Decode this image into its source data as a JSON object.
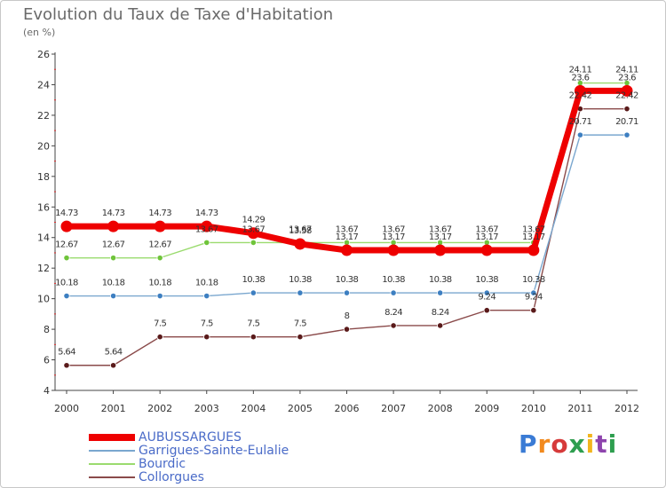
{
  "title": "Evolution du Taux de Taxe d'Habitation",
  "unit_label": "(en %)",
  "brand": "Proxiti",
  "chart_data": {
    "type": "line",
    "title": "Evolution du Taux de Taxe d'Habitation",
    "ylabel": "(en %)",
    "xlabel": "",
    "ylim": [
      4,
      26
    ],
    "yticks": [
      4,
      6,
      8,
      10,
      12,
      14,
      16,
      18,
      20,
      22,
      24,
      26
    ],
    "grid": false,
    "legend_position": "bottom-left",
    "categories": [
      "2000",
      "2001",
      "2002",
      "2003",
      "2004",
      "2005",
      "2006",
      "2007",
      "2008",
      "2009",
      "2010",
      "2011",
      "2012"
    ],
    "series": [
      {
        "name": "AUBUSSARGUES",
        "color": "#ee0000",
        "marker_color": "#ee0000",
        "values": [
          14.73,
          14.73,
          14.73,
          14.73,
          14.29,
          13.58,
          13.17,
          13.17,
          13.17,
          13.17,
          13.17,
          23.6,
          23.6
        ],
        "labels": [
          "14.73",
          "14.73",
          "14.73",
          "14.73",
          "14.29",
          "13.58",
          "13.17",
          "13.17",
          "13.17",
          "13.17",
          "13.17",
          "23.6",
          "23.6"
        ]
      },
      {
        "name": "Garrigues-Sainte-Eulalie",
        "color": "#7aa7cf",
        "marker_color": "#3d7fc1",
        "values": [
          10.18,
          10.18,
          10.18,
          10.18,
          10.38,
          10.38,
          10.38,
          10.38,
          10.38,
          10.38,
          10.38,
          20.71,
          20.71
        ],
        "labels": [
          "10.18",
          "10.18",
          "10.18",
          "10.18",
          "10.38",
          "10.38",
          "10.38",
          "10.38",
          "10.38",
          "10.38",
          "10.38",
          "20.71",
          "20.71"
        ]
      },
      {
        "name": "Bourdic",
        "color": "#9adb6e",
        "marker_color": "#6fc43a",
        "values": [
          12.67,
          12.67,
          12.67,
          13.67,
          13.67,
          13.67,
          13.67,
          13.67,
          13.67,
          13.67,
          13.67,
          24.11,
          24.11
        ],
        "labels": [
          "12.67",
          "12.67",
          "12.67",
          "13.67",
          "13.67",
          "13.67",
          "13.67",
          "13.67",
          "13.67",
          "13.67",
          "13.67",
          "24.11",
          "24.11"
        ]
      },
      {
        "name": "Collorgues",
        "color": "#8a4a4a",
        "marker_color": "#5a1a1a",
        "values": [
          5.64,
          5.64,
          7.5,
          7.5,
          7.5,
          7.5,
          8,
          8.24,
          8.24,
          9.24,
          9.24,
          22.42,
          22.42
        ],
        "labels": [
          "5.64",
          "5.64",
          "7.5",
          "7.5",
          "7.5",
          "7.5",
          "8",
          "8.24",
          "8.24",
          "9.24",
          "9.24",
          "22.42",
          "22.42"
        ]
      }
    ]
  }
}
